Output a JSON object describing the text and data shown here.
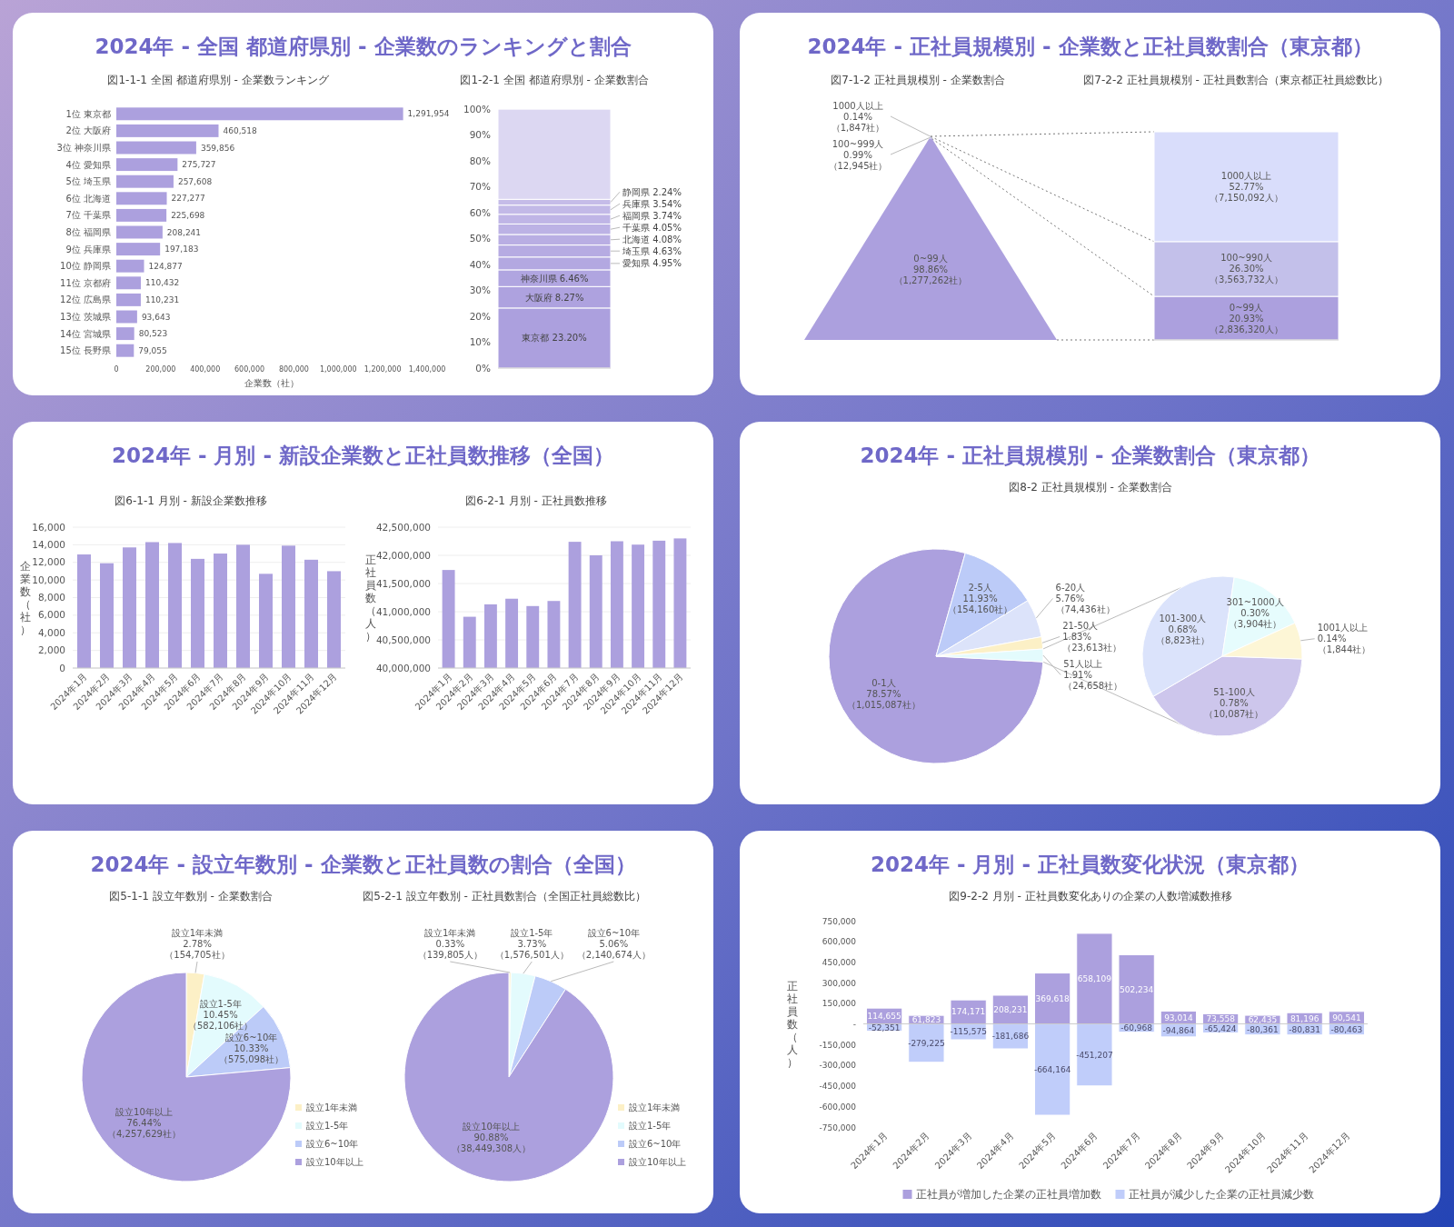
{
  "chart_data": [
    {
      "type": "bar",
      "orientation": "horizontal",
      "title": "2024年 - 全国 都道府県別 - 企業数のランキングと割合",
      "subtitle": "図1-1-1 全国 都道府県別 - 企業数ランキング",
      "categories": [
        "1位 東京都",
        "2位 大阪府",
        "3位 神奈川県",
        "4位 愛知県",
        "5位 埼玉県",
        "6位 北海道",
        "7位 千葉県",
        "8位 福岡県",
        "9位 兵庫県",
        "10位 静岡県",
        "11位 京都府",
        "12位 広島県",
        "13位 茨城県",
        "14位 宮城県",
        "15位 長野県"
      ],
      "values": [
        1291954,
        460518,
        359856,
        275727,
        257608,
        227277,
        225698,
        208241,
        197183,
        124877,
        110432,
        110231,
        93643,
        80523,
        79055
      ],
      "value_labels": [
        "1,291,954",
        "460,518",
        "359,856",
        "275,727",
        "257,608",
        "227,277",
        "225,698",
        "208,241",
        "197,183",
        "124,877",
        "110,432",
        "110,231",
        "93,643",
        "80,523",
        "79,055"
      ],
      "color": "#aca0de",
      "xlim": [
        0,
        1400000
      ],
      "xticks": [
        0,
        {
          "value": 200000,
          "label": "200,000"
        },
        {
          "value": 400000,
          "label": "400,000"
        },
        {
          "value": 600000,
          "label": "600,000"
        },
        {
          "value": 800000,
          "label": "800,000"
        },
        {
          "value": 1000000,
          "label": "1,000,000"
        },
        {
          "value": 1200000,
          "label": "1,200,000"
        },
        {
          "value": 1400000,
          "label": "1,400,000"
        }
      ],
      "xlabel": "企業数（社）"
    },
    {
      "type": "bar",
      "stacked": true,
      "subtitle": "図1-2-1 全国 都道府県別 - 企業数割合",
      "categories": [
        null
      ],
      "ylim": [
        0,
        100
      ],
      "yticks": [
        {
          "value": 0,
          "label": "0%"
        },
        {
          "value": 10,
          "label": "10%"
        },
        {
          "value": 20,
          "label": "20%"
        },
        {
          "value": 30,
          "label": "30%"
        },
        {
          "value": 40,
          "label": "40%"
        },
        {
          "value": 50,
          "label": "50%"
        },
        {
          "value": 60,
          "label": "60%"
        },
        {
          "value": 70,
          "label": "70%"
        },
        {
          "value": 80,
          "label": "80%"
        },
        {
          "value": 90,
          "label": "90%"
        },
        {
          "value": 100,
          "label": "100%"
        }
      ],
      "series": [
        {
          "color": "#aca0de",
          "values": [
            23.2
          ],
          "value_labels": [
            "東京都 23.20%"
          ]
        },
        {
          "color": "#aea2df",
          "values": [
            8.27
          ],
          "value_labels": [
            "大阪府 8.27%"
          ]
        },
        {
          "color": "#b0a5e0",
          "values": [
            6.46
          ],
          "value_labels": [
            "神奈川県 6.46%"
          ]
        },
        {
          "color": "#b3a8e1",
          "values": [
            4.95
          ],
          "value_labels": [
            "愛知県 4.95%"
          ]
        },
        {
          "color": "#b6abe2",
          "values": [
            4.63
          ],
          "value_labels": [
            "埼玉県 4.63%"
          ]
        },
        {
          "color": "#b9aee3",
          "values": [
            4.08
          ],
          "value_labels": [
            "北海道 4.08%"
          ]
        },
        {
          "color": "#bcb2e5",
          "values": [
            4.05
          ],
          "value_labels": [
            "千葉県 4.05%"
          ]
        },
        {
          "color": "#bfb5e6",
          "values": [
            3.74
          ],
          "value_labels": [
            "福岡県 3.74%"
          ]
        },
        {
          "color": "#c2b9e7",
          "values": [
            3.54
          ],
          "value_labels": [
            "兵庫県 3.54%"
          ]
        },
        {
          "color": "#c5bce8",
          "values": [
            2.24
          ],
          "value_labels": [
            "静岡県 2.24%"
          ]
        },
        {
          "color": "#dcd7f2",
          "values": [
            34.8
          ],
          "value_labels": [
            null
          ]
        }
      ]
    },
    {
      "type": "other",
      "title": "2024年 - 正社員規模別 - 企業数と正社員数割合（東京都）",
      "subtitle": "図7-1-2 正社員規模別 - 企業数割合",
      "categories": [
        "0~99人",
        "100~999人",
        "1000人以上"
      ],
      "values": [
        98.86,
        0.99,
        0.14
      ],
      "value_labels": [
        "98.86%\n（1,277,262社）",
        "0.99%\n（12,945社）",
        "0.14%\n（1,847社）"
      ],
      "colors": [
        "#aca0de",
        "#c3c0ea",
        "#d9ddfb"
      ]
    },
    {
      "type": "bar",
      "stacked": true,
      "subtitle": "図7-2-2 正社員規模別 - 正社員数割合（東京都正社員総数比）",
      "categories": [
        null
      ],
      "series": [
        {
          "color": "#aca0de",
          "values": [
            20.93
          ],
          "value_labels": [
            "0~99人\n20.93%\n（2,836,320人）"
          ]
        },
        {
          "color": "#c3c0ea",
          "values": [
            26.3
          ],
          "value_labels": [
            "100~990人\n26.30%\n（3,563,732人）"
          ]
        },
        {
          "color": "#d9ddfb",
          "values": [
            52.77
          ],
          "value_labels": [
            "1000人以上\n52.77%\n（7,150,092人）"
          ]
        }
      ]
    },
    {
      "type": "bar",
      "title": "2024年 - 月別 - 新設企業数と正社員数推移（全国）",
      "subtitle": "図6-1-1 月別 - 新設企業数推移",
      "categories": [
        "2024年1月",
        "2024年2月",
        "2024年3月",
        "2024年4月",
        "2024年5月",
        "2024年6月",
        "2024年7月",
        "2024年8月",
        "2024年9月",
        "2024年10月",
        "2024年11月",
        "2024年12月"
      ],
      "values": [
        12900,
        11900,
        13700,
        14300,
        14200,
        12400,
        13000,
        14000,
        10700,
        13900,
        12300,
        11000
      ],
      "color": "#aca0de",
      "ylim": [
        0,
        16000
      ],
      "yticks": [
        0,
        {
          "value": 2000,
          "label": "2,000"
        },
        {
          "value": 4000,
          "label": "4,000"
        },
        {
          "value": 6000,
          "label": "6,000"
        },
        {
          "value": 8000,
          "label": "8,000"
        },
        {
          "value": 10000,
          "label": "10,000"
        },
        {
          "value": 12000,
          "label": "12,000"
        },
        {
          "value": 14000,
          "label": "14,000"
        },
        {
          "value": 16000,
          "label": "16,000"
        }
      ],
      "ylabel": "企業数（社）",
      "grid": "y"
    },
    {
      "type": "bar",
      "subtitle": "図6-2-1 月別 - 正社員数推移",
      "categories": [
        "2024年1月",
        "2024年2月",
        "2024年3月",
        "2024年4月",
        "2024年5月",
        "2024年6月",
        "2024年7月",
        "2024年8月",
        "2024年9月",
        "2024年10月",
        "2024年11月",
        "2024年12月"
      ],
      "values": [
        41740000,
        40910000,
        41130000,
        41230000,
        41100000,
        41190000,
        42240000,
        42000000,
        42250000,
        42190000,
        42260000,
        42300000
      ],
      "color": "#aca0de",
      "ylim": [
        40000000,
        42500000
      ],
      "yticks": [
        {
          "value": 40000000,
          "label": "40,000,000"
        },
        {
          "value": 40500000,
          "label": "40,500,000"
        },
        {
          "value": 41000000,
          "label": "41,000,000"
        },
        {
          "value": 41500000,
          "label": "41,500,000"
        },
        {
          "value": 42000000,
          "label": "42,000,000"
        },
        {
          "value": 42500000,
          "label": "42,500,000"
        }
      ],
      "ylabel": "正社員数（人）",
      "grid": "y"
    },
    {
      "type": "pie",
      "title": "2024年 - 正社員規模別 - 企業数割合（東京都）",
      "subtitle": "図8-2 正社員規模別 - 企業数割合",
      "categories": [
        "0-1人",
        "2-5人",
        "6-20人",
        "21-50人",
        "51人以上"
      ],
      "values": [
        78.57,
        11.93,
        5.76,
        1.83,
        1.91
      ],
      "value_labels": [
        "78.57%\n（1,015,087社）",
        "11.93%\n（154,160社）",
        "5.76%\n（74,436社）",
        "1.83%\n（23,613社）",
        "1.91%\n（24,658社）"
      ],
      "colors": [
        "#aca0de",
        "#bccbf8",
        "#dce3fa",
        "#fcf0c6",
        "#e3fbfd"
      ]
    },
    {
      "type": "pie",
      "categories": [
        "51-100人",
        "101-300人",
        "301~1000人",
        "1001人以上"
      ],
      "values": [
        0.78,
        0.68,
        0.3,
        0.14
      ],
      "value_labels": [
        "0.78%\n（10,087社）",
        "0.68%\n（8,823社）",
        "0.30%\n（3,904社）",
        "0.14%\n（1,844社）"
      ],
      "colors": [
        "#cdc6ec",
        "#dbe3fb",
        "#e6fcfd",
        "#fdf6d6"
      ]
    },
    {
      "type": "pie",
      "title": "2024年 - 設立年数別 - 企業数と正社員数の割合（全国）",
      "subtitle": "図5-1-1 設立年数別 - 企業数割合",
      "categories": [
        "設立1年未満",
        "設立1-5年",
        "設立6~10年",
        "設立10年以上"
      ],
      "values": [
        2.78,
        10.45,
        10.33,
        76.44
      ],
      "value_labels": [
        "2.78%\n（154,705社）",
        "10.45%\n（582,106社）",
        "10.33%\n（575,098社）",
        "76.44%\n（4,257,629社）"
      ],
      "colors": [
        "#fcf0c6",
        "#e3fbfd",
        "#bccbf8",
        "#aca0de"
      ],
      "legend": "bottom right"
    },
    {
      "type": "pie",
      "subtitle": "図5-2-1 設立年数別 - 正社員数割合（全国正社員総数比）",
      "categories": [
        "設立1年未満",
        "設立1-5年",
        "設立6~10年",
        "設立10年以上"
      ],
      "values": [
        0.33,
        3.73,
        5.06,
        90.88
      ],
      "value_labels": [
        "0.33%\n（139,805人）",
        "3.73%\n（1,576,501人）",
        "5.06%\n（2,140,674人）",
        "90.88%\n（38,449,308人）"
      ],
      "colors": [
        "#fcf0c6",
        "#e3fbfd",
        "#bccbf8",
        "#aca0de"
      ],
      "legend": "bottom right"
    },
    {
      "type": "bar",
      "stacked": true,
      "title": "2024年 - 月別 - 正社員数変化状況（東京都）",
      "subtitle": "図9-2-2 月別 - 正社員数変化ありの企業の人数増減数推移",
      "categories": [
        "2024年1月",
        "2024年2月",
        "2024年3月",
        "2024年4月",
        "2024年5月",
        "2024年6月",
        "2024年7月",
        "2024年8月",
        "2024年9月",
        "2024年10月",
        "2024年11月",
        "2024年12月"
      ],
      "series": [
        {
          "name": "正社員が増加した企業の正社員増加数",
          "color": "#aca0de",
          "values": [
            114655,
            61823,
            174171,
            208231,
            369618,
            658109,
            502234,
            93014,
            73558,
            62435,
            81196,
            90541
          ],
          "value_labels": [
            "114,655",
            "61,823",
            "174,171",
            "208,231",
            "369,618",
            "658,109",
            "502,234",
            "93,014",
            "73,558",
            "62,435",
            "81,196",
            "90,541"
          ]
        },
        {
          "name": "正社員が減少した企業の正社員減少数",
          "color": "#c0cdfa",
          "values": [
            -52351,
            -279225,
            -115575,
            -181686,
            -664164,
            -451207,
            -60968,
            -94864,
            -65424,
            -80361,
            -80831,
            -80463
          ],
          "value_labels": [
            "-52,351",
            "-279,225",
            "-115,575",
            "-181,686",
            "-664,164",
            "-451,207",
            "-60,968",
            "-94,864",
            "-65,424",
            "-80,361",
            "-80,831",
            "-80,463"
          ]
        }
      ],
      "ylim": [
        -750000,
        750000
      ],
      "yticks": [
        {
          "value": -750000,
          "label": "-750,000"
        },
        {
          "value": -600000,
          "label": "-600,000"
        },
        {
          "value": -450000,
          "label": "-450,000"
        },
        {
          "value": -300000,
          "label": "-300,000"
        },
        {
          "value": -150000,
          "label": "-150,000"
        },
        {
          "value": 0,
          "label": "-"
        },
        {
          "value": 150000,
          "label": "150,000"
        },
        {
          "value": 300000,
          "label": "300,000"
        },
        {
          "value": 450000,
          "label": "450,000"
        },
        {
          "value": 600000,
          "label": "600,000"
        },
        {
          "value": 750000,
          "label": "750,000"
        }
      ],
      "ylabel": "正社員数（人）",
      "legend": "bottom"
    }
  ]
}
